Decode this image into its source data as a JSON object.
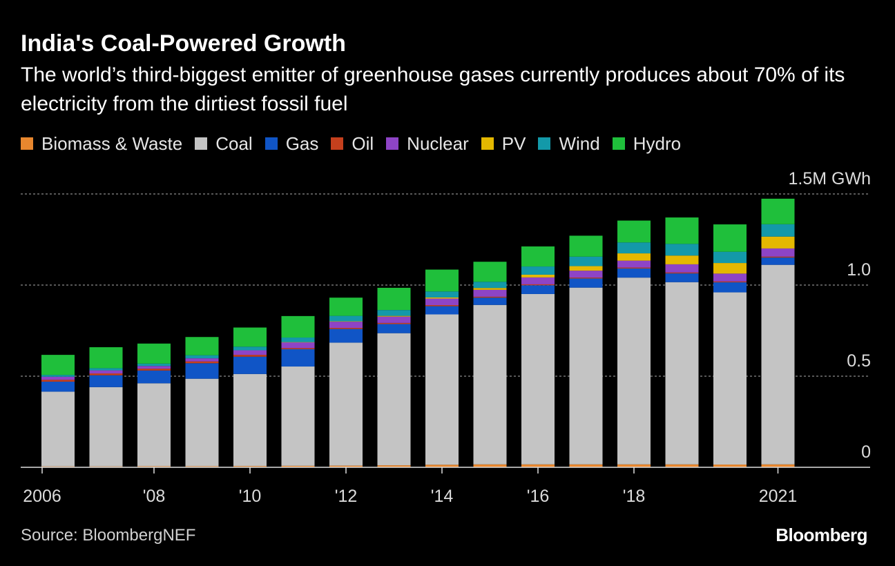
{
  "header": {
    "title": "India's Coal-Powered Growth",
    "subtitle": "The world’s third-biggest emitter of greenhouse gases currently produces about 70% of its electricity from the dirtiest fossil fuel"
  },
  "footer": {
    "source": "Source: BloombergNEF",
    "brand": "Bloomberg"
  },
  "chart_data": {
    "type": "bar",
    "stacked": true,
    "title": "India's Coal-Powered Growth",
    "subtitle": "The world’s third-biggest emitter of greenhouse gases currently produces about 70% of its electricity from the dirtiest fossil fuel",
    "ylabel": "",
    "xlabel": "",
    "ylim": [
      0,
      1.5
    ],
    "yticks": [
      0,
      0.5,
      1.0,
      1.5
    ],
    "ytick_labels": [
      "0",
      "0.5",
      "1.0",
      "1.5M GWh"
    ],
    "x": [
      2006,
      2007,
      2008,
      2009,
      2010,
      2011,
      2012,
      2013,
      2014,
      2015,
      2016,
      2017,
      2018,
      2019,
      2020,
      2021
    ],
    "xtick_labels": [
      "2006",
      "",
      "'08",
      "",
      "'10",
      "",
      "'12",
      "",
      "'14",
      "",
      "'16",
      "",
      "'18",
      "",
      "",
      "2021"
    ],
    "legend_position": "top",
    "grid": "horizontal dotted",
    "series": [
      {
        "name": "Biomass & Waste",
        "color": "#e8872e",
        "values": [
          0.005,
          0.005,
          0.006,
          0.006,
          0.007,
          0.008,
          0.009,
          0.011,
          0.014,
          0.016,
          0.016,
          0.016,
          0.016,
          0.016,
          0.015,
          0.016
        ]
      },
      {
        "name": "Coal",
        "color": "#c4c4c4",
        "values": [
          0.41,
          0.435,
          0.455,
          0.48,
          0.505,
          0.545,
          0.675,
          0.725,
          0.825,
          0.875,
          0.935,
          0.97,
          1.025,
          1.0,
          0.945,
          1.095
        ]
      },
      {
        "name": "Gas",
        "color": "#1055c6",
        "values": [
          0.055,
          0.065,
          0.07,
          0.085,
          0.095,
          0.095,
          0.075,
          0.05,
          0.045,
          0.04,
          0.048,
          0.05,
          0.05,
          0.048,
          0.055,
          0.04
        ]
      },
      {
        "name": "Oil",
        "color": "#c5401d",
        "values": [
          0.01,
          0.01,
          0.01,
          0.01,
          0.01,
          0.006,
          0.006,
          0.006,
          0.006,
          0.005,
          0.005,
          0.005,
          0.005,
          0.005,
          0.005,
          0.005
        ]
      },
      {
        "name": "Nuclear",
        "color": "#8e44c6",
        "values": [
          0.017,
          0.017,
          0.015,
          0.017,
          0.025,
          0.032,
          0.034,
          0.035,
          0.036,
          0.038,
          0.038,
          0.038,
          0.038,
          0.045,
          0.043,
          0.045
        ]
      },
      {
        "name": "PV",
        "color": "#e4b800",
        "values": [
          0.0,
          0.0,
          0.0,
          0.0,
          0.0,
          0.001,
          0.002,
          0.004,
          0.006,
          0.01,
          0.015,
          0.025,
          0.04,
          0.048,
          0.058,
          0.065
        ]
      },
      {
        "name": "Wind",
        "color": "#1399a9",
        "values": [
          0.01,
          0.012,
          0.013,
          0.017,
          0.02,
          0.025,
          0.03,
          0.032,
          0.033,
          0.034,
          0.045,
          0.052,
          0.06,
          0.064,
          0.062,
          0.068
        ]
      },
      {
        "name": "Hydro",
        "color": "#1fbf3b",
        "values": [
          0.11,
          0.115,
          0.11,
          0.1,
          0.105,
          0.118,
          0.1,
          0.122,
          0.12,
          0.11,
          0.11,
          0.115,
          0.12,
          0.145,
          0.15,
          0.14
        ]
      }
    ]
  }
}
